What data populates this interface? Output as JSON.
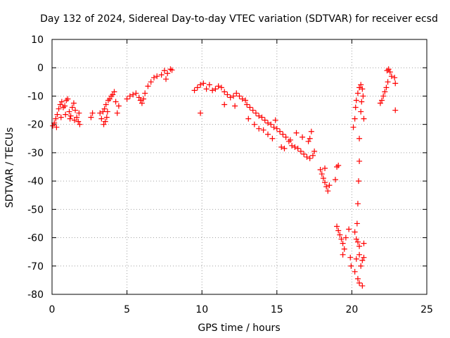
{
  "chart_data": {
    "type": "scatter",
    "title": "Day 132 of 2024, Sidereal Day-to-day VTEC variation (SDTVAR) for receiver ecsd",
    "xlabel": "GPS time / hours",
    "ylabel": "SDTVAR / TECUs",
    "xlim": [
      0,
      25
    ],
    "ylim": [
      -80,
      10
    ],
    "xticks": [
      0,
      5,
      10,
      15,
      20,
      25
    ],
    "yticks": [
      10,
      0,
      -10,
      -20,
      -30,
      -40,
      -50,
      -60,
      -70,
      -80
    ],
    "grid": true,
    "marker": "+",
    "marker_color": "#ff0000",
    "series": [
      {
        "name": "SDTVAR",
        "points": [
          [
            0.05,
            -20.5
          ],
          [
            0.15,
            -19.5
          ],
          [
            0.25,
            -18.0
          ],
          [
            0.35,
            -16.5
          ],
          [
            0.45,
            -14.5
          ],
          [
            0.55,
            -13.0
          ],
          [
            0.65,
            -12.0
          ],
          [
            0.75,
            -14.0
          ],
          [
            0.85,
            -13.5
          ],
          [
            0.95,
            -11.5
          ],
          [
            1.05,
            -11.0
          ],
          [
            1.15,
            -15.5
          ],
          [
            1.25,
            -17.0
          ],
          [
            1.35,
            -14.0
          ],
          [
            1.45,
            -12.5
          ],
          [
            1.55,
            -15.0
          ],
          [
            1.65,
            -17.5
          ],
          [
            1.75,
            -19.0
          ],
          [
            1.85,
            -20.0
          ],
          [
            0.3,
            -21.0
          ],
          [
            0.6,
            -17.5
          ],
          [
            0.9,
            -16.5
          ],
          [
            1.2,
            -18.0
          ],
          [
            1.5,
            -18.5
          ],
          [
            1.8,
            -16.0
          ],
          [
            2.6,
            -17.5
          ],
          [
            2.7,
            -16.0
          ],
          [
            3.2,
            -16.0
          ],
          [
            3.3,
            -18.0
          ],
          [
            3.4,
            -15.5
          ],
          [
            3.5,
            -14.5
          ],
          [
            3.6,
            -13.0
          ],
          [
            3.7,
            -15.5
          ],
          [
            3.75,
            -11.5
          ],
          [
            3.85,
            -11.0
          ],
          [
            3.95,
            -10.0
          ],
          [
            4.05,
            -9.5
          ],
          [
            4.15,
            -8.5
          ],
          [
            4.25,
            -12.0
          ],
          [
            4.35,
            -16.0
          ],
          [
            3.55,
            -19.0
          ],
          [
            3.65,
            -17.5
          ],
          [
            3.45,
            -20.0
          ],
          [
            4.45,
            -13.5
          ],
          [
            5.0,
            -11.0
          ],
          [
            5.2,
            -10.0
          ],
          [
            5.4,
            -9.5
          ],
          [
            5.6,
            -9.0
          ],
          [
            5.8,
            -10.5
          ],
          [
            5.9,
            -11.5
          ],
          [
            6.0,
            -12.5
          ],
          [
            6.1,
            -11.0
          ],
          [
            6.2,
            -9.0
          ],
          [
            6.4,
            -6.5
          ],
          [
            6.6,
            -5.0
          ],
          [
            6.8,
            -3.5
          ],
          [
            7.0,
            -3.0
          ],
          [
            7.3,
            -2.5
          ],
          [
            7.5,
            -1.0
          ],
          [
            7.7,
            -2.0
          ],
          [
            7.9,
            -0.5
          ],
          [
            8.0,
            -0.8
          ],
          [
            7.6,
            -4.0
          ],
          [
            9.5,
            -8.0
          ],
          [
            9.7,
            -7.0
          ],
          [
            9.9,
            -6.0
          ],
          [
            10.1,
            -5.5
          ],
          [
            10.3,
            -7.5
          ],
          [
            10.5,
            -6.0
          ],
          [
            10.7,
            -8.0
          ],
          [
            10.9,
            -7.5
          ],
          [
            11.1,
            -6.5
          ],
          [
            11.3,
            -7.0
          ],
          [
            11.5,
            -8.5
          ],
          [
            11.7,
            -9.5
          ],
          [
            11.9,
            -10.5
          ],
          [
            12.1,
            -10.0
          ],
          [
            12.3,
            -9.0
          ],
          [
            12.5,
            -10.0
          ],
          [
            12.7,
            -11.0
          ],
          [
            12.9,
            -11.5
          ],
          [
            9.9,
            -16.0
          ],
          [
            11.5,
            -13.0
          ],
          [
            12.2,
            -13.5
          ],
          [
            13.0,
            -13.0
          ],
          [
            13.2,
            -14.0
          ],
          [
            13.4,
            -15.0
          ],
          [
            13.6,
            -16.0
          ],
          [
            13.8,
            -17.0
          ],
          [
            14.0,
            -17.5
          ],
          [
            14.2,
            -18.5
          ],
          [
            14.4,
            -19.5
          ],
          [
            14.6,
            -20.0
          ],
          [
            14.8,
            -21.0
          ],
          [
            15.0,
            -21.5
          ],
          [
            15.2,
            -22.5
          ],
          [
            15.4,
            -23.5
          ],
          [
            15.6,
            -24.5
          ],
          [
            15.8,
            -26.0
          ],
          [
            16.0,
            -27.5
          ],
          [
            16.2,
            -28.0
          ],
          [
            16.4,
            -28.5
          ],
          [
            16.6,
            -29.5
          ],
          [
            16.8,
            -30.5
          ],
          [
            17.0,
            -31.5
          ],
          [
            17.2,
            -32.0
          ],
          [
            17.4,
            -31.0
          ],
          [
            17.5,
            -29.5
          ],
          [
            13.5,
            -20.0
          ],
          [
            13.8,
            -21.5
          ],
          [
            14.1,
            -22.0
          ],
          [
            14.4,
            -23.5
          ],
          [
            14.7,
            -25.0
          ],
          [
            15.3,
            -28.0
          ],
          [
            15.5,
            -28.5
          ],
          [
            15.9,
            -25.5
          ],
          [
            16.3,
            -23.0
          ],
          [
            16.7,
            -24.5
          ],
          [
            17.1,
            -26.0
          ],
          [
            17.3,
            -22.5
          ],
          [
            17.2,
            -25.0
          ],
          [
            13.1,
            -18.0
          ],
          [
            14.9,
            -18.5
          ],
          [
            17.9,
            -36.0
          ],
          [
            18.0,
            -37.5
          ],
          [
            18.1,
            -39.0
          ],
          [
            18.2,
            -40.5
          ],
          [
            18.3,
            -42.0
          ],
          [
            18.4,
            -43.5
          ],
          [
            18.5,
            -41.5
          ],
          [
            18.2,
            -35.5
          ],
          [
            18.9,
            -39.5
          ],
          [
            19.0,
            -35.0
          ],
          [
            19.1,
            -34.5
          ],
          [
            19.0,
            -56.0
          ],
          [
            19.1,
            -57.5
          ],
          [
            19.2,
            -59.0
          ],
          [
            19.3,
            -60.5
          ],
          [
            19.4,
            -62.0
          ],
          [
            19.5,
            -64.0
          ],
          [
            19.6,
            -60.0
          ],
          [
            19.4,
            -66.0
          ],
          [
            19.8,
            -57.0
          ],
          [
            19.9,
            -67.0
          ],
          [
            19.95,
            -70.0
          ],
          [
            20.2,
            -58.0
          ],
          [
            20.3,
            -60.5
          ],
          [
            20.4,
            -61.5
          ],
          [
            20.5,
            -63.0
          ],
          [
            20.3,
            -67.5
          ],
          [
            20.5,
            -66.0
          ],
          [
            20.6,
            -70.0
          ],
          [
            20.7,
            -68.0
          ],
          [
            20.8,
            -67.0
          ],
          [
            20.8,
            -62.0
          ],
          [
            20.2,
            -72.0
          ],
          [
            20.4,
            -74.5
          ],
          [
            20.5,
            -76.0
          ],
          [
            20.7,
            -77.0
          ],
          [
            20.1,
            -21.0
          ],
          [
            20.2,
            -18.0
          ],
          [
            20.25,
            -14.0
          ],
          [
            20.3,
            -11.5
          ],
          [
            20.4,
            -9.0
          ],
          [
            20.5,
            -7.0
          ],
          [
            20.6,
            -6.0
          ],
          [
            20.7,
            -7.5
          ],
          [
            20.5,
            -25.0
          ],
          [
            20.45,
            -40.0
          ],
          [
            20.4,
            -48.0
          ],
          [
            20.35,
            -55.0
          ],
          [
            20.5,
            -33.0
          ],
          [
            20.6,
            -15.5
          ],
          [
            20.65,
            -12.0
          ],
          [
            20.75,
            -10.0
          ],
          [
            20.8,
            -18.0
          ],
          [
            21.9,
            -12.5
          ],
          [
            22.0,
            -11.5
          ],
          [
            22.1,
            -10.0
          ],
          [
            22.2,
            -8.5
          ],
          [
            22.3,
            -7.0
          ],
          [
            22.4,
            -5.0
          ],
          [
            22.35,
            -1.0
          ],
          [
            22.45,
            -0.5
          ],
          [
            22.55,
            -1.5
          ],
          [
            22.65,
            -3.0
          ],
          [
            22.9,
            -5.5
          ],
          [
            22.85,
            -3.5
          ],
          [
            22.9,
            -15.0
          ]
        ]
      }
    ]
  }
}
